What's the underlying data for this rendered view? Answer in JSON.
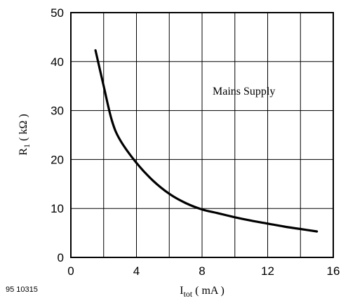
{
  "chart_data": {
    "type": "line",
    "title": "",
    "xlabel": {
      "main": "I",
      "sub": "tot",
      "unit": " ( mA )"
    },
    "ylabel": {
      "main": "R",
      "sub": "1",
      "unit": " ( kΩ )"
    },
    "xlim": [
      0,
      16
    ],
    "ylim": [
      0,
      50
    ],
    "x_ticks": [
      0,
      4,
      8,
      12,
      16
    ],
    "y_ticks": [
      0,
      10,
      20,
      30,
      40,
      50
    ],
    "x_grid_step": 2,
    "y_grid_step": 10,
    "grid": true,
    "annotation": "Mains Supply",
    "figure_code": "95 10315",
    "line_color": "#000000",
    "series": [
      {
        "x": [
          1.5,
          2.0,
          2.5,
          3.0,
          4.0,
          5.0,
          6.0,
          7.0,
          8.0,
          9.0,
          10.0,
          11.0,
          12.0,
          13.0,
          14.0,
          15.0
        ],
        "values": [
          42.3,
          35.0,
          28.0,
          24.0,
          19.3,
          15.7,
          13.0,
          11.1,
          9.8,
          9.0,
          8.2,
          7.5,
          6.9,
          6.3,
          5.8,
          5.3
        ]
      }
    ]
  }
}
